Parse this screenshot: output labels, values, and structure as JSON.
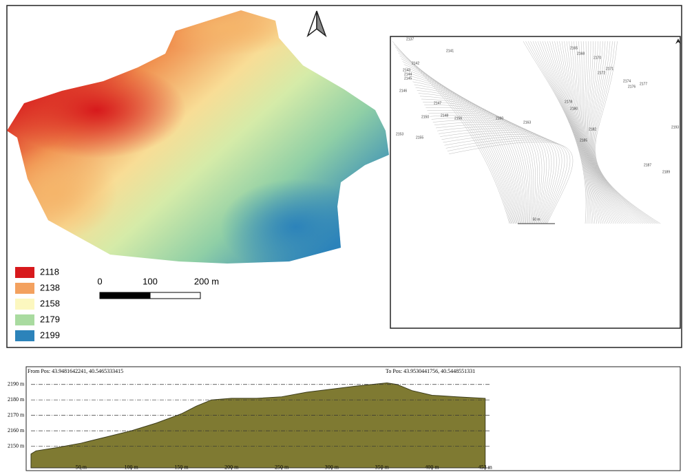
{
  "map": {
    "legend": [
      {
        "label": "2118",
        "color": "#d7191c"
      },
      {
        "label": "2138",
        "color": "#f3a15f"
      },
      {
        "label": "2158",
        "color": "#fcf7bf"
      },
      {
        "label": "2179",
        "color": "#a9dba0"
      },
      {
        "label": "2199",
        "color": "#2c83ba"
      }
    ],
    "scale_bar": [
      "0",
      "100",
      "200 m"
    ]
  },
  "contour_map": {
    "labels": [
      "2137",
      "2141",
      "2142",
      "2143",
      "2144",
      "2145",
      "2146",
      "2147",
      "2148",
      "2150",
      "2153",
      "2155",
      "2156",
      "2160",
      "2163",
      "2165",
      "2168",
      "2170",
      "2171",
      "2172",
      "2174",
      "2176",
      "2177",
      "2178",
      "2180",
      "2182",
      "2185",
      "2187",
      "2189",
      "2193"
    ],
    "scale_label": "50 m"
  },
  "chart_data": {
    "type": "area",
    "from_label": "From Pos: 43.9481642241, 40.5465333415",
    "to_label": "To Pos: 43.9530441756, 40.5448551331",
    "color": "#7f7a32",
    "x": [
      0,
      5,
      25,
      50,
      75,
      100,
      125,
      150,
      165,
      180,
      200,
      225,
      250,
      275,
      300,
      325,
      340,
      355,
      365,
      380,
      400,
      425,
      453
    ],
    "values": [
      2145,
      2147,
      2149,
      2152,
      2156,
      2160,
      2165,
      2171,
      2176,
      2180,
      2181,
      2181,
      2182,
      2185,
      2187,
      2189,
      2190,
      2191,
      2190,
      2186,
      2183,
      2182,
      2181
    ],
    "xlim": [
      0,
      458
    ],
    "ylim": [
      2136,
      2197
    ],
    "xticks": [
      {
        "value": 50,
        "label": "50 m"
      },
      {
        "value": 100,
        "label": "100 m"
      },
      {
        "value": 150,
        "label": "150 m"
      },
      {
        "value": 200,
        "label": "200 m"
      },
      {
        "value": 250,
        "label": "250 m"
      },
      {
        "value": 300,
        "label": "300 m"
      },
      {
        "value": 350,
        "label": "350 m"
      },
      {
        "value": 400,
        "label": "400 m"
      },
      {
        "value": 453,
        "label": "453 m"
      }
    ],
    "yticks": [
      {
        "value": 2150,
        "label": "2150 m"
      },
      {
        "value": 2160,
        "label": "2160 m"
      },
      {
        "value": 2170,
        "label": "2170 m"
      },
      {
        "value": 2180,
        "label": "2180 m"
      },
      {
        "value": 2190,
        "label": "2190 m"
      }
    ],
    "grid": true
  }
}
